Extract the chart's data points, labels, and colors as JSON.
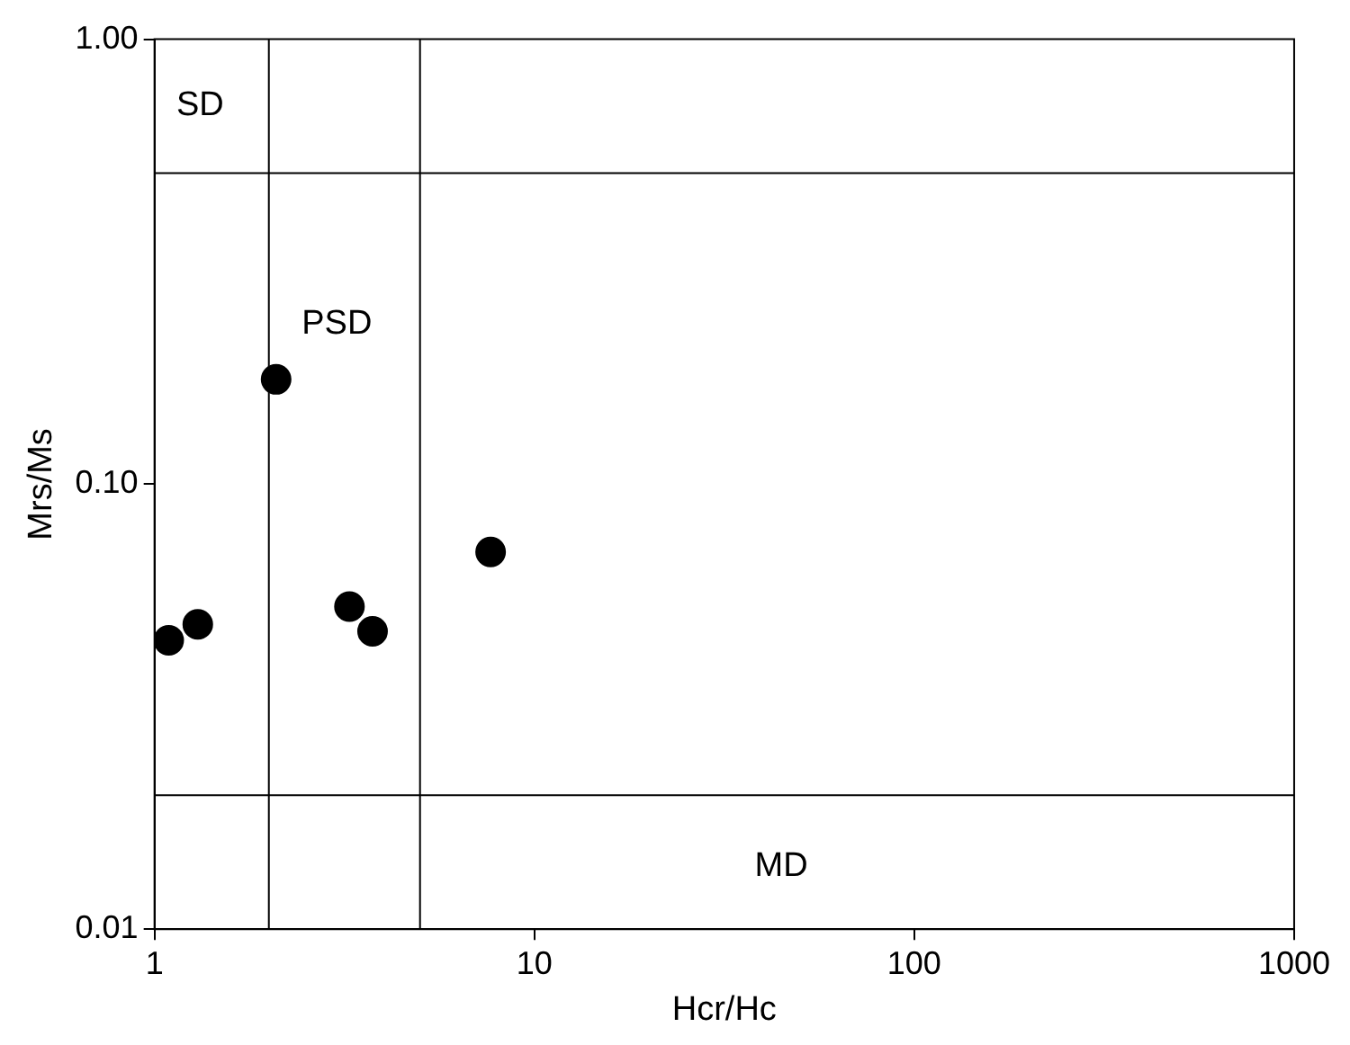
{
  "chart_data": {
    "type": "scatter",
    "xlabel": "Hcr/Hc",
    "ylabel": "Mrs/Ms",
    "log": "xy",
    "grid": false,
    "marker": "circle",
    "x": [
      1.09,
      1.3,
      2.09,
      3.26,
      3.75,
      7.67
    ],
    "series": [
      {
        "color": "#000000",
        "values": [
          0.0446,
          0.0484,
          0.172,
          0.0531,
          0.0467,
          0.0704
        ]
      }
    ],
    "xlim": [
      1,
      1000
    ],
    "ylim": [
      0.01,
      1
    ],
    "xticks": [
      1,
      10,
      100,
      1000
    ],
    "yticks": [
      {
        "value": 0.01,
        "label": "0.01"
      },
      {
        "value": 0.1,
        "label": "0.10"
      },
      {
        "value": 1,
        "label": "1.00"
      }
    ],
    "ref_lines": [
      {
        "axis": "x",
        "value": 2,
        "color": "#000000"
      },
      {
        "axis": "x",
        "value": 5,
        "color": "#000000"
      },
      {
        "axis": "y",
        "value": 0.5,
        "color": "#000000"
      },
      {
        "axis": "y",
        "value": 0.02,
        "color": "#000000"
      }
    ],
    "annotations": [
      "SD",
      "PSD",
      "MD"
    ]
  }
}
